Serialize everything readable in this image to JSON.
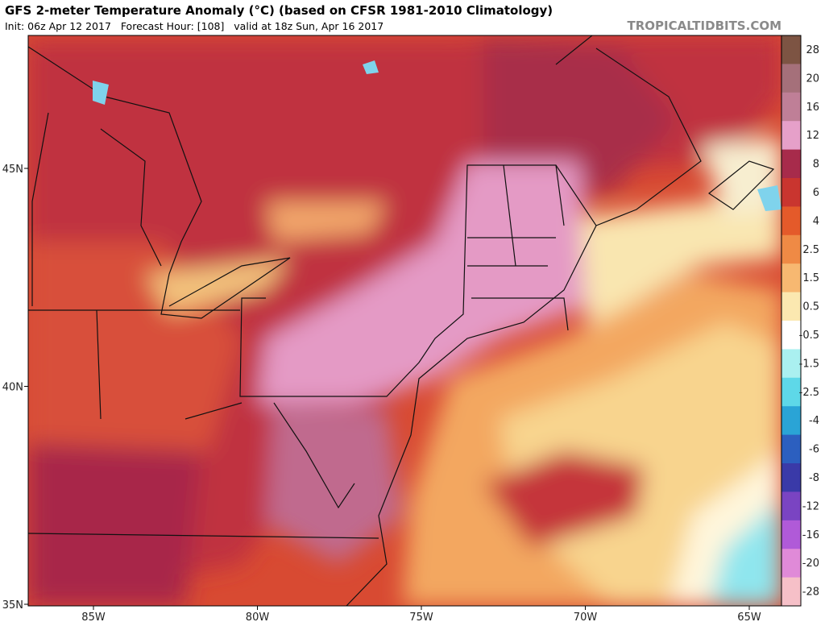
{
  "header": {
    "title": "GFS 2-meter Temperature Anomaly (°C) (based on CFSR 1981-2010 Climatology)",
    "subtitle": "Init: 06z Apr 12 2017   Forecast Hour: [108]   valid at 18z Sun, Apr 16 2017",
    "brand": "TROPICALTIDBITS.COM"
  },
  "map": {
    "lat_labels": [
      "45N",
      "40N",
      "35N"
    ],
    "lon_labels": [
      "85W",
      "80W",
      "75W",
      "70W",
      "65W"
    ]
  },
  "colorbar": {
    "labels": [
      "28",
      "20",
      "16",
      "12",
      "8",
      "6",
      "4",
      "2.5",
      "1.5",
      "0.5",
      "-0.5",
      "-1.5",
      "-2.5",
      "-4",
      "-6",
      "-8",
      "-12",
      "-16",
      "-20",
      "-28"
    ],
    "colors": [
      "#7d5443",
      "#a5707a",
      "#bf7f97",
      "#e6a0c9",
      "#a72b4b",
      "#c9352f",
      "#e45a2a",
      "#ef8a45",
      "#f7b871",
      "#fbe8b0",
      "#ffffff",
      "#aaf0f0",
      "#5ed8e8",
      "#2aa4d6",
      "#2c5fbf",
      "#3a3aa8",
      "#7a44c2",
      "#b05ad8",
      "#e08ad8",
      "#f6c0c8"
    ]
  }
}
